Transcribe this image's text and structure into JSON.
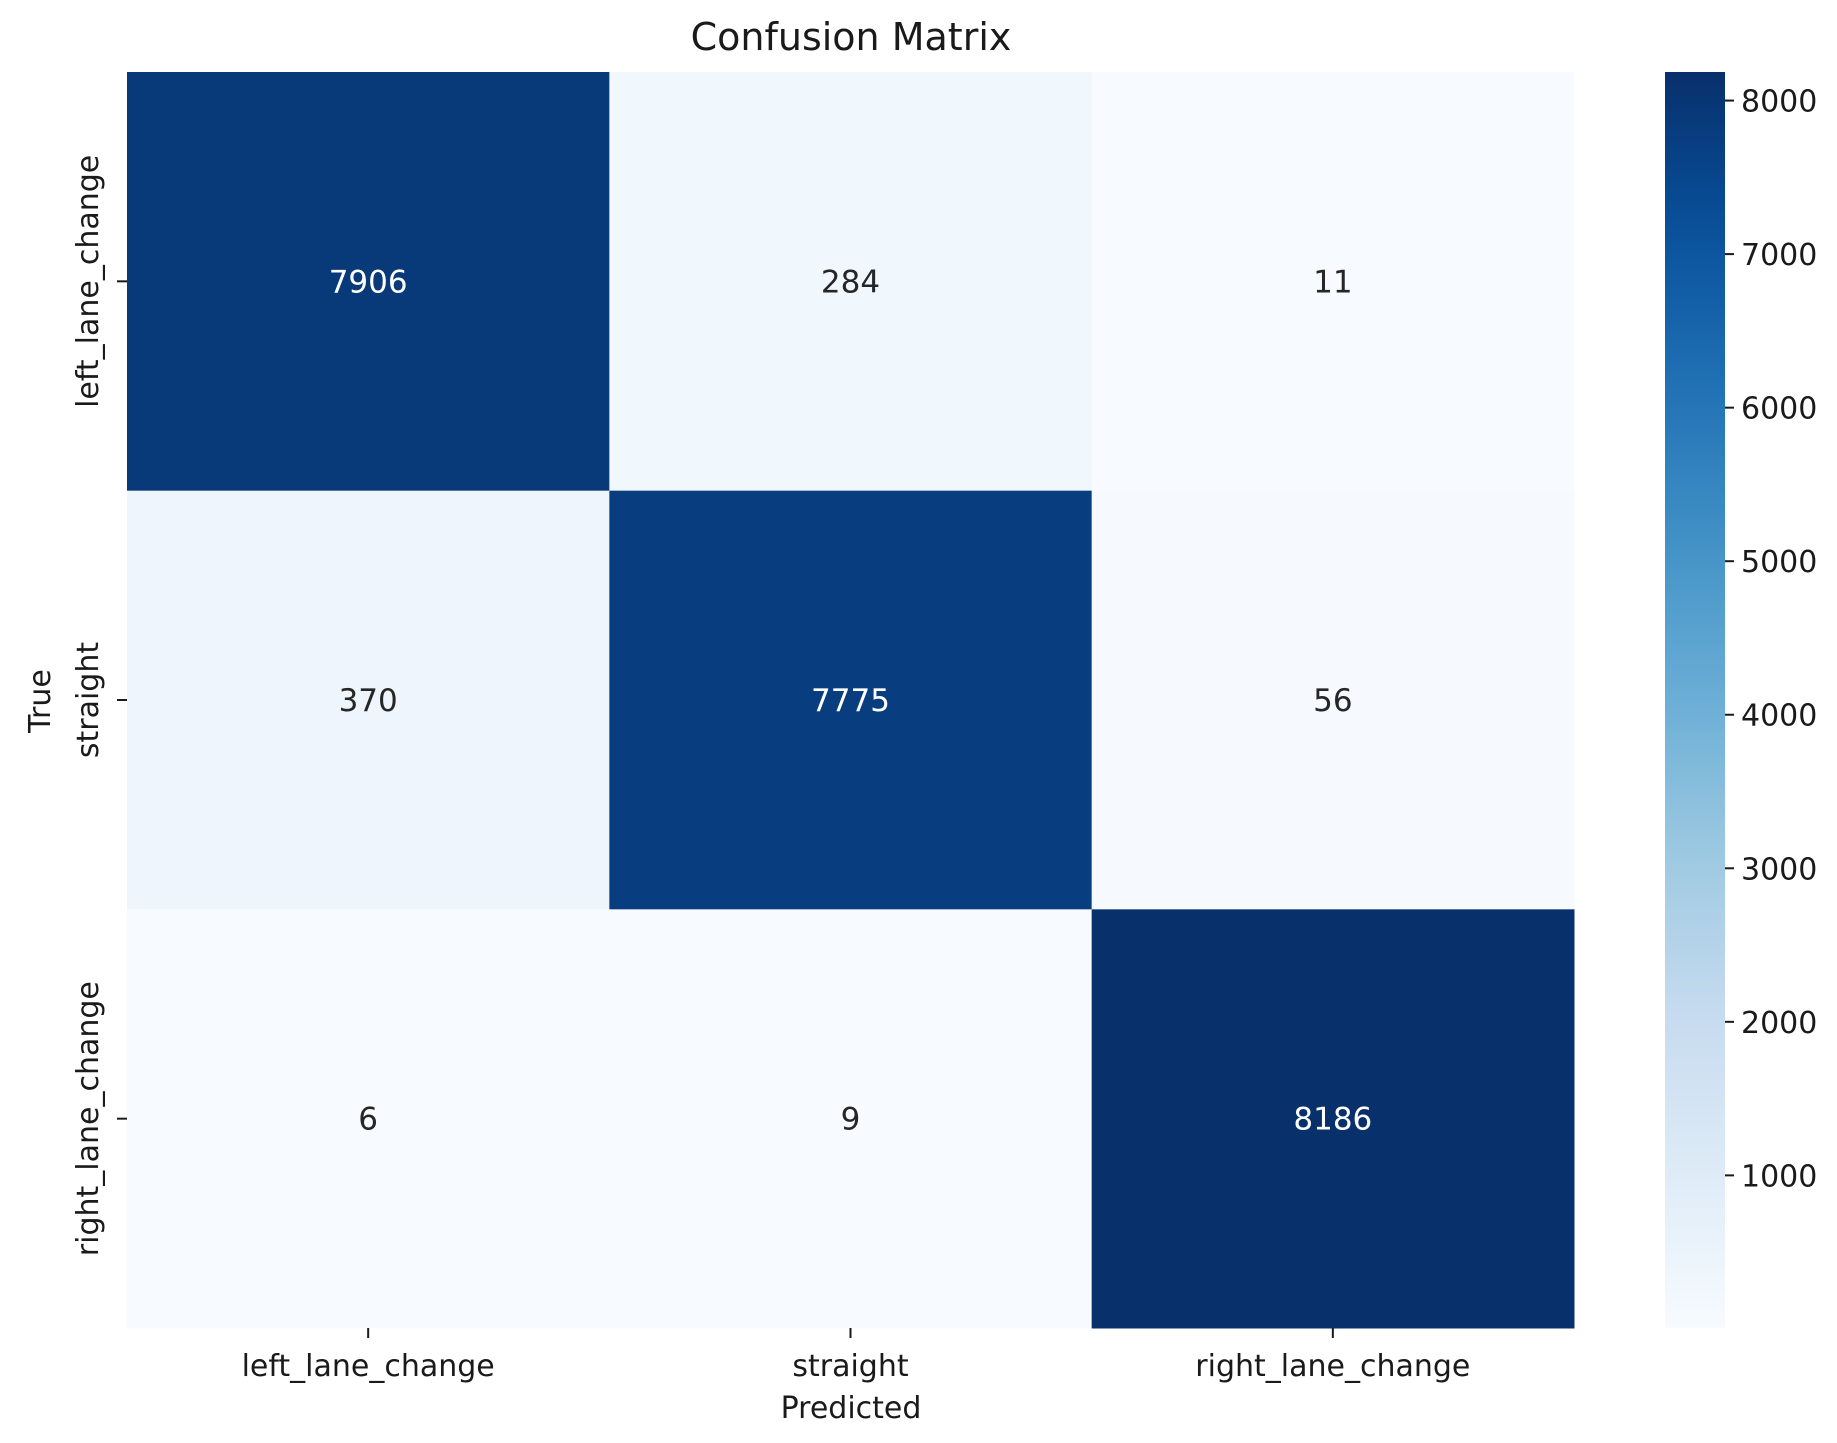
{
  "chart_data": {
    "type": "heatmap",
    "title": "Confusion Matrix",
    "xlabel": "Predicted",
    "ylabel": "True",
    "x_categories": [
      "left_lane_change",
      "straight",
      "right_lane_change"
    ],
    "y_categories": [
      "left_lane_change",
      "straight",
      "right_lane_change"
    ],
    "values": [
      [
        7906,
        284,
        11
      ],
      [
        370,
        7775,
        56
      ],
      [
        6,
        9,
        8186
      ]
    ],
    "colormap": "Blues",
    "colors": {
      "low": "#f7fbff",
      "high": "#08306b"
    },
    "colorbar": {
      "range": [
        6,
        8186
      ],
      "ticks": [
        1000,
        2000,
        3000,
        4000,
        5000,
        6000,
        7000,
        8000
      ]
    }
  }
}
